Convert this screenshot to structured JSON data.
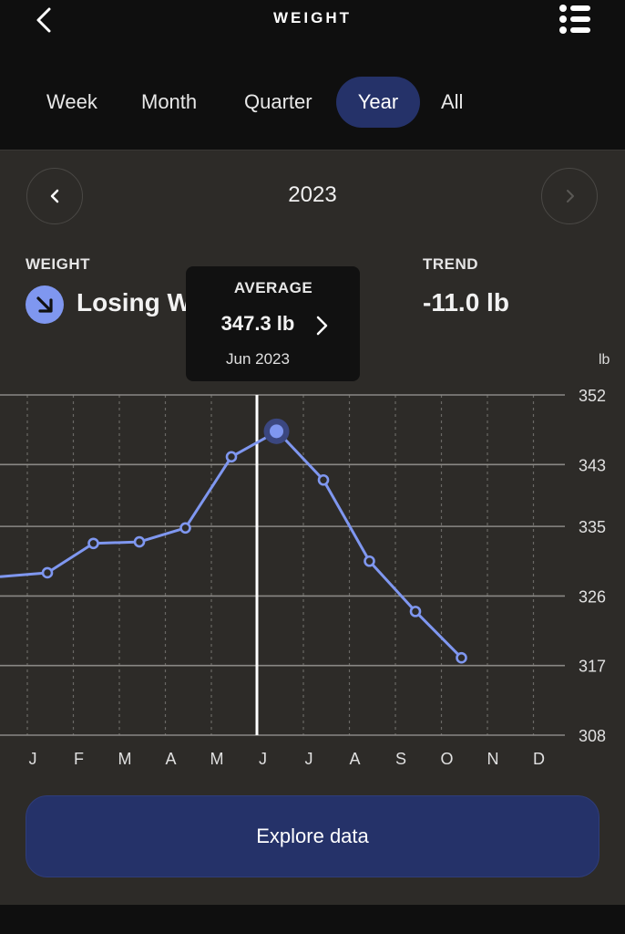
{
  "header": {
    "title": "WEIGHT",
    "back_icon": "chevron-left-icon",
    "menu_icon": "list-icon"
  },
  "tabs": [
    {
      "label": "Week",
      "active": false
    },
    {
      "label": "Month",
      "active": false
    },
    {
      "label": "Quarter",
      "active": false
    },
    {
      "label": "Year",
      "active": true
    },
    {
      "label": "All",
      "active": false
    }
  ],
  "period": {
    "label": "2023"
  },
  "weight": {
    "label": "WEIGHT",
    "status": "Losing Weight",
    "status_icon": "arrow-down-right-icon"
  },
  "trend": {
    "label": "TREND",
    "value": "-11.0 lb"
  },
  "tooltip": {
    "label": "AVERAGE",
    "value": "347.3 lb",
    "date": "Jun 2023"
  },
  "colors": {
    "accent": "#7f97f0",
    "button": "#253269",
    "panel": "#2d2b28"
  },
  "chart_data": {
    "type": "line",
    "unit_label": "lb",
    "categories": [
      "J",
      "F",
      "M",
      "A",
      "M",
      "J",
      "J",
      "A",
      "S",
      "O",
      "N",
      "D"
    ],
    "y_ticks": [
      "352",
      "343",
      "335",
      "326",
      "317",
      "308"
    ],
    "y_tick_values": [
      352,
      343,
      335,
      326,
      317,
      308
    ],
    "ylim": [
      308,
      352
    ],
    "prev_value": 328.5,
    "series": [
      {
        "values": [
          329.0,
          332.8,
          333.0,
          334.8,
          344.0,
          347.3,
          341.0,
          330.5,
          324.0,
          318.0,
          null,
          null
        ]
      }
    ],
    "selected_index": 5,
    "grid": true
  },
  "actions": {
    "explore_label": "Explore data"
  }
}
